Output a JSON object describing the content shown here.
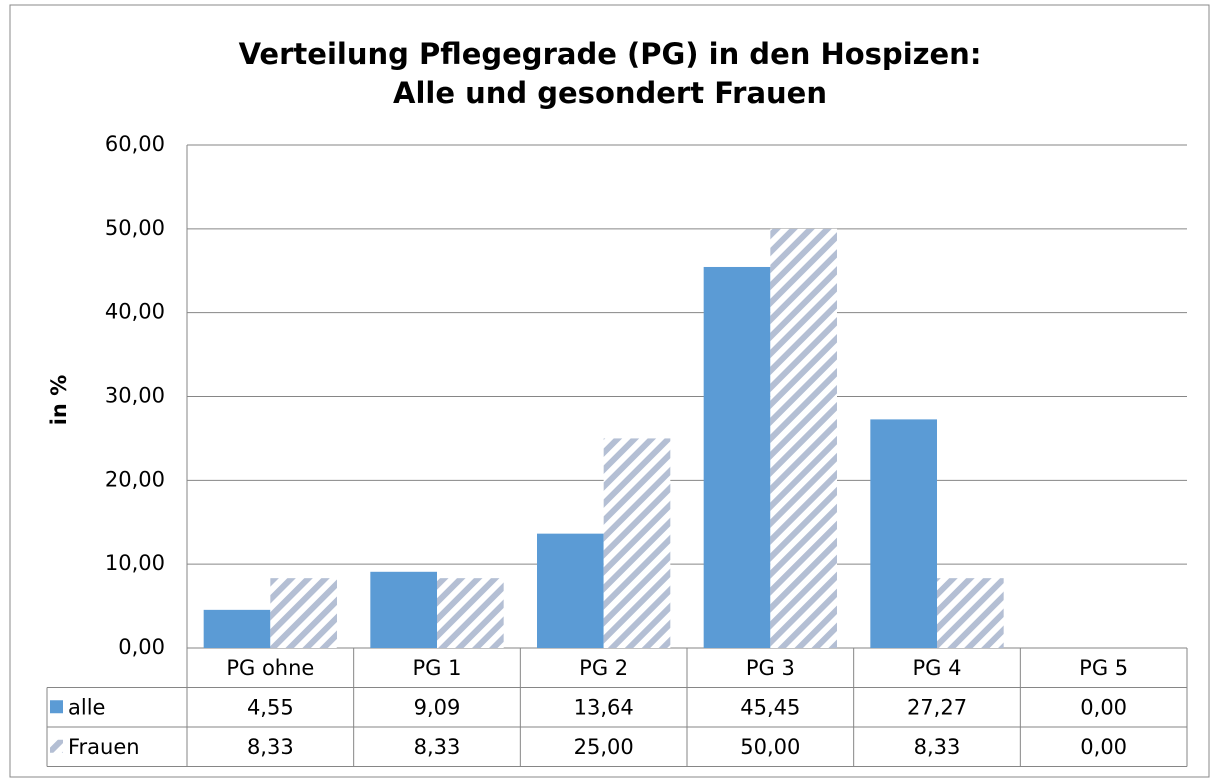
{
  "chart_data": {
    "type": "bar",
    "title": [
      "Verteilung Pflegegrade (PG) in den Hospizen:",
      "Alle und gesondert Frauen"
    ],
    "y_label": "in %",
    "categories": [
      "PG ohne",
      "PG 1",
      "PG 2",
      "PG 3",
      "PG 4",
      "PG 5"
    ],
    "series": [
      {
        "name": "alle",
        "color": "#5b9bd5",
        "values": [
          4.55,
          9.09,
          13.64,
          45.45,
          27.27,
          0
        ],
        "value_labels": [
          "4,55",
          "9,09",
          "13,64",
          "45,45",
          "27,27",
          "0,00"
        ]
      },
      {
        "name": "Frauen",
        "color": "#b4bfd4",
        "pattern": "hatch",
        "values": [
          8.33,
          8.33,
          25,
          50,
          8.33,
          0
        ],
        "value_labels": [
          "8,33",
          "8,33",
          "25,00",
          "50,00",
          "8,33",
          "0,00"
        ]
      }
    ],
    "ylim": [
      0,
      60
    ],
    "yticks": [
      {
        "value": 0,
        "label": "0,00"
      },
      {
        "value": 10,
        "label": "10,00"
      },
      {
        "value": 20,
        "label": "20,00"
      },
      {
        "value": 30,
        "label": "30,00"
      },
      {
        "value": 40,
        "label": "40,00"
      },
      {
        "value": 50,
        "label": "50,00"
      },
      {
        "value": 60,
        "label": "60,00"
      }
    ],
    "grid": true,
    "data_table": true
  }
}
